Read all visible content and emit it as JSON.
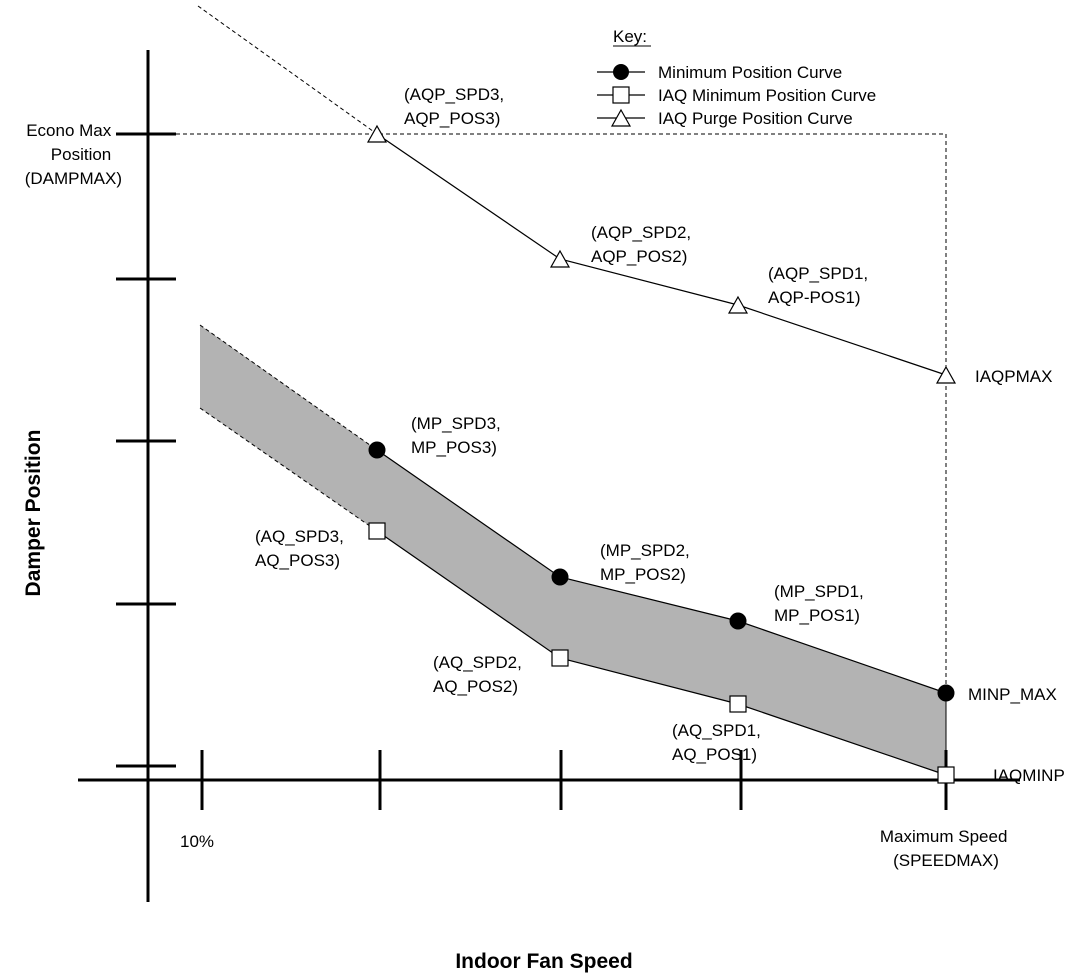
{
  "axes": {
    "x_title": "Indoor Fan Speed",
    "y_title": "Damper Position",
    "x_tick_min_label": "10%",
    "x_tick_max_label": [
      "Maximum Speed",
      "(SPEEDMAX)"
    ],
    "y_econo_label": [
      "Econo Max",
      "Position",
      "(DAMPMAX)"
    ]
  },
  "key": {
    "title": "Key:",
    "items": [
      {
        "label": "Minimum Position Curve",
        "marker": "filled-circle"
      },
      {
        "label": "IAQ Minimum Position Curve",
        "marker": "open-square"
      },
      {
        "label": "IAQ Purge Position Curve",
        "marker": "open-triangle"
      }
    ]
  },
  "point_labels": {
    "aqp3": [
      "(AQP_SPD3,",
      "AQP_POS3)"
    ],
    "aqp2": [
      "(AQP_SPD2,",
      "AQP_POS2)"
    ],
    "aqp1": [
      "(AQP_SPD1,",
      "AQP-POS1)"
    ],
    "iaqpmax": "IAQPMAX",
    "mp3": [
      "(MP_SPD3,",
      "MP_POS3)"
    ],
    "mp2": [
      "(MP_SPD2,",
      "MP_POS2)"
    ],
    "mp1": [
      "(MP_SPD1,",
      "MP_POS1)"
    ],
    "minp_max": "MINP_MAX",
    "aq3": [
      "(AQ_SPD3,",
      "AQ_POS3)"
    ],
    "aq2": [
      "(AQ_SPD2,",
      "AQ_POS2)"
    ],
    "aq1": [
      "(AQ_SPD1,",
      "AQ_POS1)"
    ],
    "iaqminp": "IAQMINP"
  },
  "colors": {
    "band_fill": "#b3b3b3",
    "line": "#000000",
    "marker_fill": "#ffffff"
  }
}
